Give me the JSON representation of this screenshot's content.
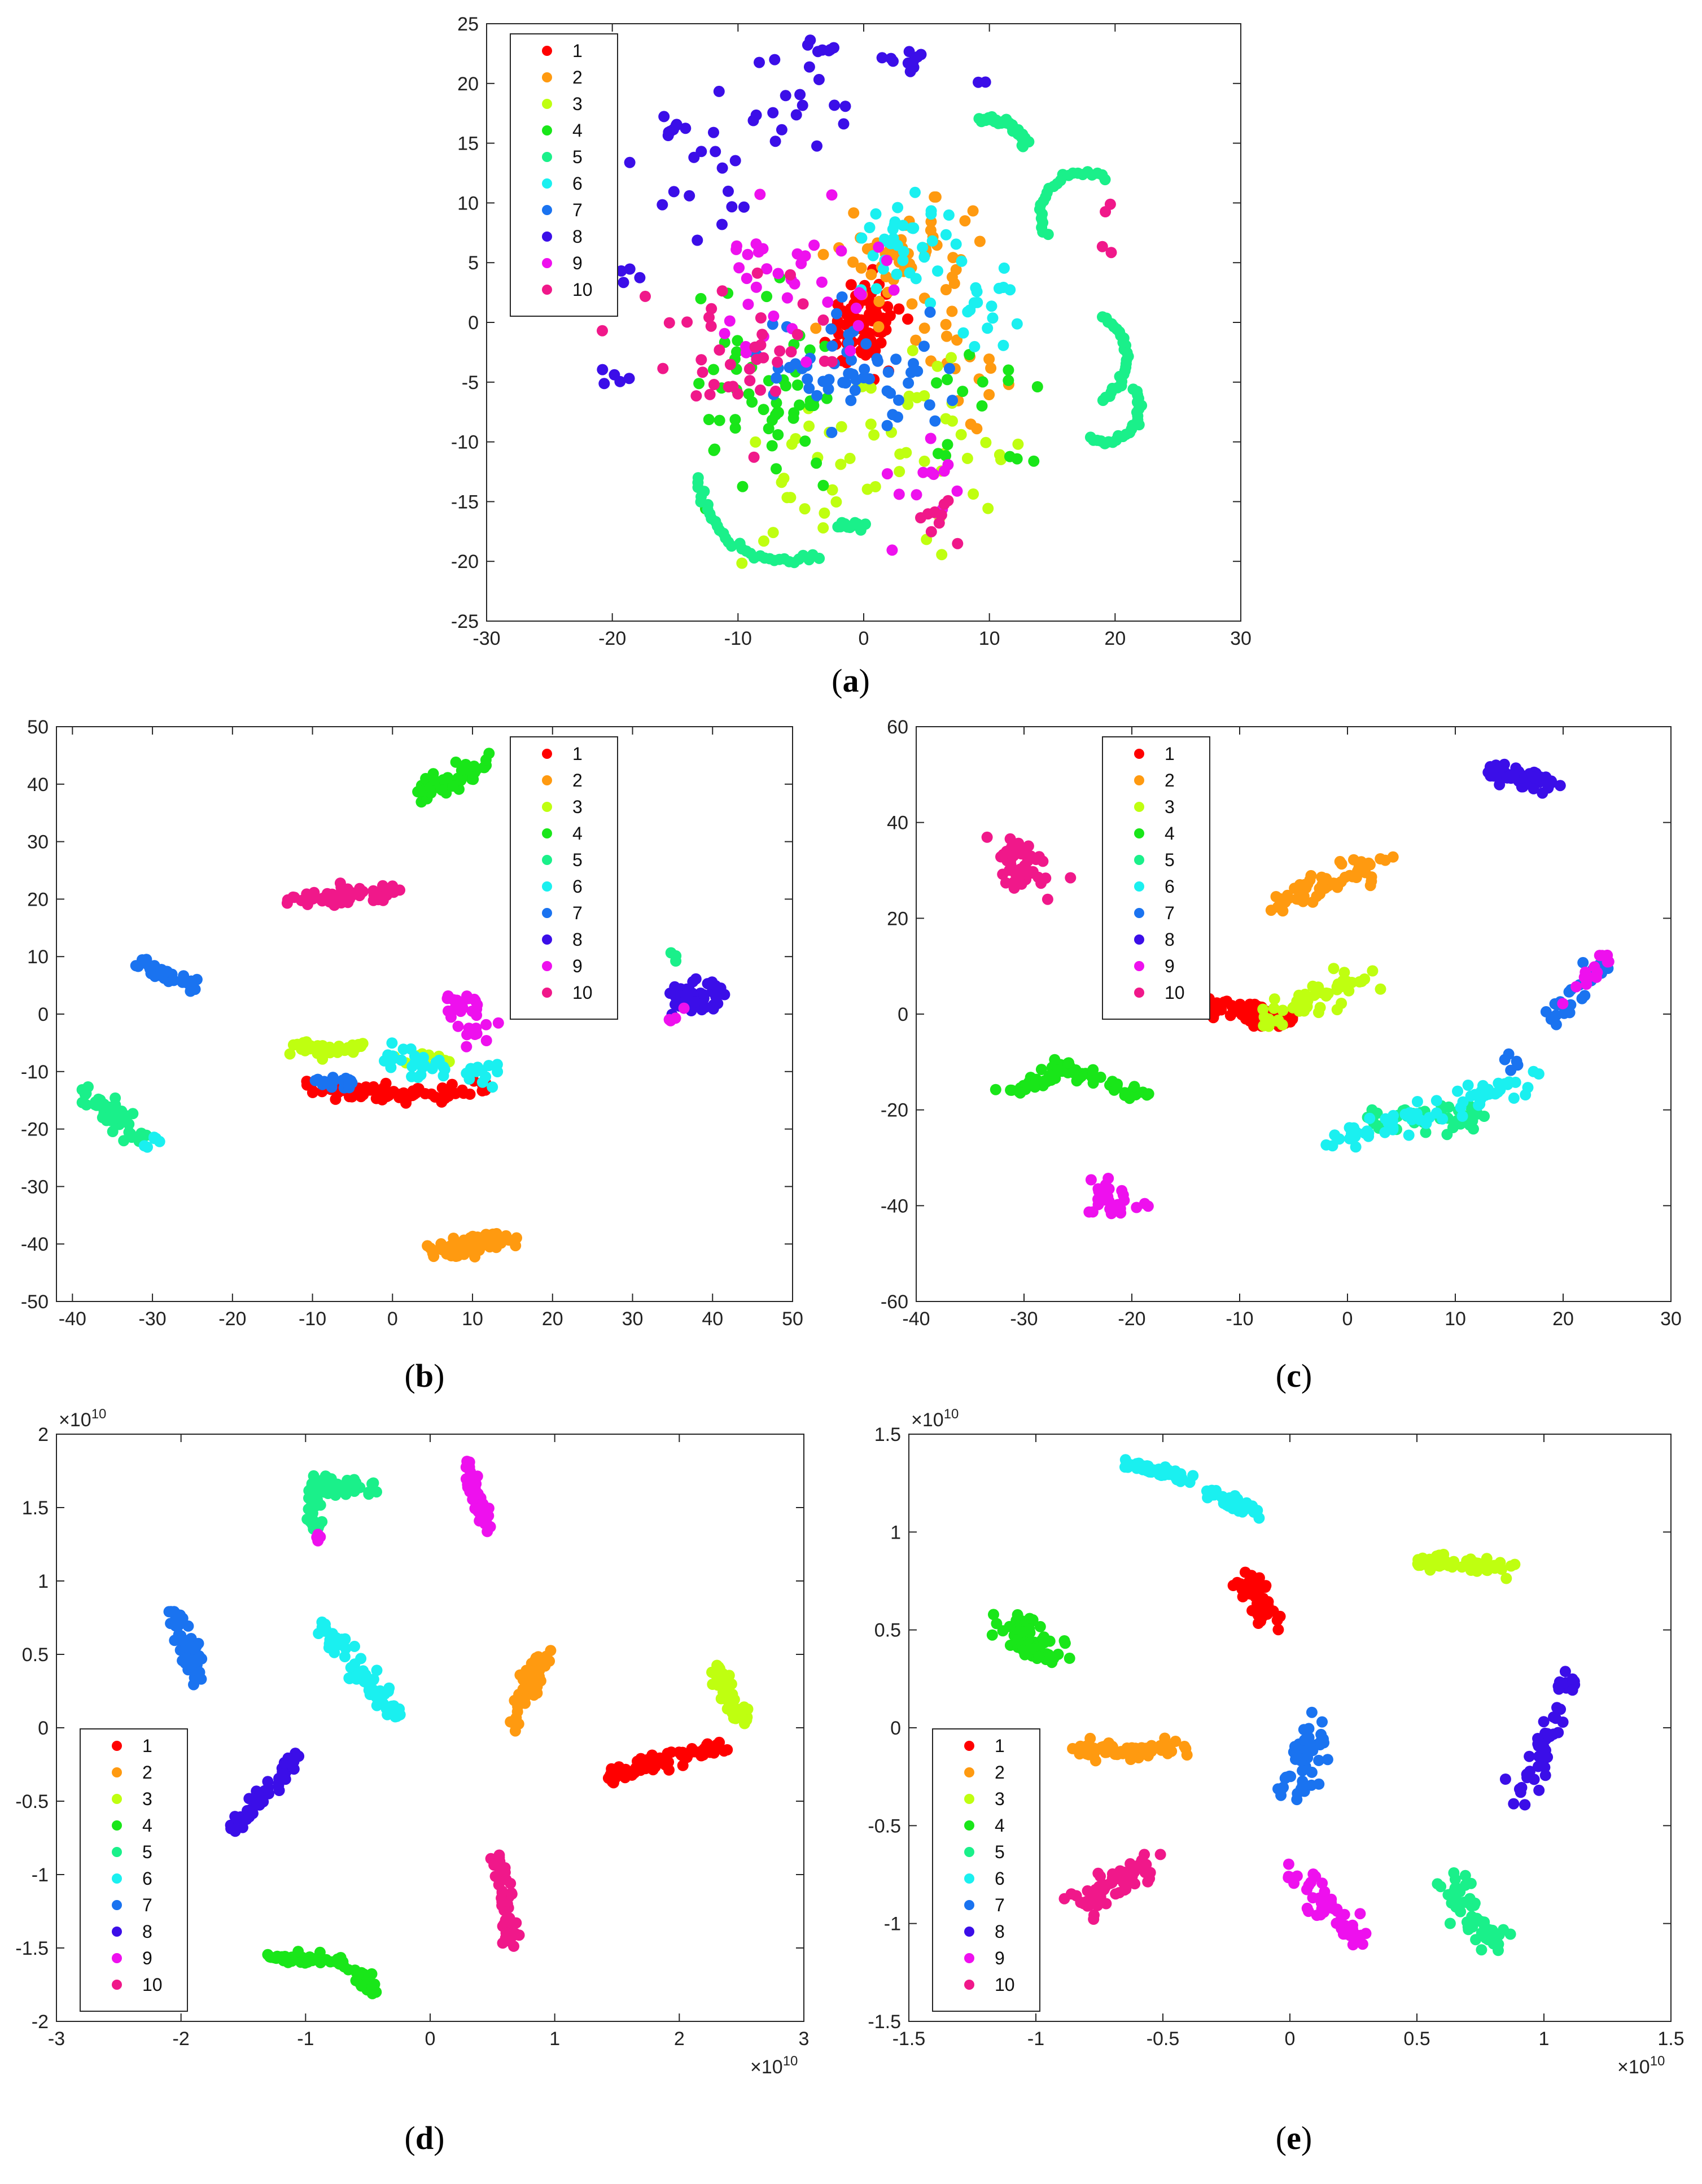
{
  "chart_data": [
    {
      "id": "a",
      "panel_label": "a",
      "type": "scatter",
      "title": "",
      "xlabel": "",
      "ylabel": "",
      "xlim": [
        -30,
        30
      ],
      "ylim": [
        -25,
        25
      ],
      "xticks": [
        -30,
        -20,
        -10,
        0,
        10,
        20,
        30
      ],
      "yticks": [
        -25,
        -20,
        -15,
        -10,
        -5,
        0,
        5,
        10,
        15,
        20,
        25
      ],
      "exponent": "",
      "legend_position": "top-left",
      "series": [
        {
          "name": "1",
          "clusters": [
            [
              0,
              0,
              2.5,
              3.0,
              80
            ]
          ]
        },
        {
          "name": "2",
          "clusters": [
            [
              4,
              5,
              5,
              4.5,
              55
            ],
            [
              8,
              -4,
              3,
              3,
              15
            ]
          ]
        },
        {
          "name": "3",
          "clusters": [
            [
              2,
              -10,
              8,
              5,
              45
            ],
            [
              -5,
              -15,
              4,
              3,
              12
            ]
          ]
        },
        {
          "name": "4",
          "clusters": [
            [
              -8,
              -7,
              6,
              7,
              55
            ],
            [
              10,
              -8,
              4,
              4,
              15
            ]
          ]
        },
        {
          "name": "5",
          "arcs": [
            [
              10,
              14,
              3,
              15,
              105,
              40
            ],
            [
              17.5,
              9,
              3.5,
              60,
              210,
              25
            ],
            [
              17,
              -3,
              4,
              300,
              420,
              28
            ],
            [
              19,
              -7,
              3,
              250,
              390,
              25
            ],
            [
              -6,
              -13,
              7,
              180,
              290,
              35
            ],
            [
              -1,
              -20,
              3,
              70,
              110,
              12
            ]
          ]
        },
        {
          "name": "6",
          "clusters": [
            [
              3,
              7,
              4,
              3,
              35
            ],
            [
              10,
              2,
              3,
              3,
              20
            ]
          ]
        },
        {
          "name": "7",
          "clusters": [
            [
              -1,
              -4,
              6,
              4,
              60
            ]
          ]
        },
        {
          "name": "8",
          "clusters": [
            [
              -12,
              12,
              5,
              4,
              18
            ],
            [
              -5,
              18,
              5,
              4,
              18
            ],
            [
              3,
              22,
              2,
              1,
              10
            ],
            [
              -3,
              23,
              1,
              0.5,
              6
            ],
            [
              -15,
              16,
              1,
              0.5,
              6
            ],
            [
              -20,
              -5,
              1.5,
              1,
              5
            ],
            [
              -19,
              4,
              1,
              1,
              4
            ],
            [
              10,
              20,
              0.5,
              0.5,
              2
            ]
          ]
        },
        {
          "name": "9",
          "clusters": [
            [
              -6,
              3,
              7,
              6,
              40
            ],
            [
              4,
              -13,
              5,
              4,
              12
            ]
          ]
        },
        {
          "name": "10",
          "clusters": [
            [
              -10,
              -2,
              6,
              6,
              40
            ],
            [
              6,
              -17,
              2,
              2,
              10
            ],
            [
              19,
              7,
              1,
              3,
              4
            ]
          ]
        }
      ]
    },
    {
      "id": "b",
      "panel_label": "b",
      "type": "scatter",
      "title": "",
      "xlabel": "",
      "ylabel": "",
      "xlim": [
        -42,
        50
      ],
      "ylim": [
        -50,
        50
      ],
      "xticks": [
        -40,
        -30,
        -20,
        -10,
        0,
        10,
        20,
        30,
        40,
        50
      ],
      "yticks": [
        -50,
        -40,
        -30,
        -20,
        -10,
        0,
        10,
        20,
        30,
        40,
        50
      ],
      "exponent": "",
      "legend_position": "top-right",
      "series": [
        {
          "name": "1",
          "segments": [
            [
              -10,
              -13,
              5,
              -14,
              60,
              1.2
            ],
            [
              5,
              -14,
              12,
              -13,
              20,
              1.0
            ]
          ]
        },
        {
          "name": "2",
          "segments": [
            [
              5,
              -42,
              14,
              -39,
              70,
              1.8
            ]
          ]
        },
        {
          "name": "3",
          "segments": [
            [
              -13,
              -6,
              -3,
              -6,
              35,
              1.2
            ],
            [
              0,
              -8,
              7,
              -8,
              15,
              1.0
            ]
          ]
        },
        {
          "name": "4",
          "segments": [
            [
              4,
              39,
              11,
              43,
              55,
              1.8
            ]
          ]
        },
        {
          "name": "5",
          "segments": [
            [
              -38,
              -14,
              -31,
              -22,
              55,
              1.5
            ],
            [
              35,
              11,
              35,
              8,
              3,
              0.4
            ]
          ]
        },
        {
          "name": "6",
          "segments": [
            [
              0,
              -8,
              14,
              -11,
              40,
              2.0
            ],
            [
              -29,
              -21,
              -31,
              -23,
              6,
              0.8
            ]
          ]
        },
        {
          "name": "7",
          "segments": [
            [
              -32,
              9,
              -25,
              5,
              35,
              1.0
            ],
            [
              -10,
              -12,
              -5,
              -12,
              15,
              1.0
            ]
          ]
        },
        {
          "name": "8",
          "segments": [
            [
              36,
              2,
              41,
              4,
              45,
              2.0
            ]
          ]
        },
        {
          "name": "9",
          "segments": [
            [
              8,
              3,
              11,
              -5,
              30,
              1.8
            ],
            [
              34,
              -2,
              36,
              1,
              4,
              0.5
            ]
          ]
        },
        {
          "name": "10",
          "segments": [
            [
              -13,
              20,
              0,
              21,
              60,
              1.2
            ]
          ]
        }
      ]
    },
    {
      "id": "c",
      "panel_label": "c",
      "type": "scatter",
      "title": "",
      "xlabel": "",
      "ylabel": "",
      "xlim": [
        -40,
        30
      ],
      "ylim": [
        -60,
        60
      ],
      "xticks": [
        -40,
        -30,
        -20,
        -10,
        0,
        10,
        20,
        30
      ],
      "yticks": [
        -60,
        -40,
        -20,
        0,
        20,
        40,
        60
      ],
      "exponent": "",
      "legend_position": "top-left",
      "series": [
        {
          "name": "1",
          "segments": [
            [
              -13,
              2,
              -6,
              -2,
              45,
              2.5
            ]
          ]
        },
        {
          "name": "2",
          "segments": [
            [
              -6,
              23,
              3,
              32,
              65,
              1.8
            ]
          ]
        },
        {
          "name": "3",
          "segments": [
            [
              -8,
              -2,
              2,
              8,
              55,
              2.2
            ]
          ]
        },
        {
          "name": "4",
          "segments": [
            [
              -31,
              -16,
              -26,
              -11,
              35,
              1.8
            ],
            [
              -26,
              -11,
              -19,
              -17,
              30,
              1.5
            ]
          ]
        },
        {
          "name": "5",
          "segments": [
            [
              3,
              -22,
              12,
              -22,
              45,
              2.5
            ]
          ]
        },
        {
          "name": "6",
          "segments": [
            [
              -2,
              -27,
              17,
              -14,
              70,
              1.8
            ]
          ]
        },
        {
          "name": "7",
          "segments": [
            [
              19,
              -1,
              23,
              10,
              30,
              1.2
            ],
            [
              14,
              -8,
              16,
              -12,
              5,
              0.8
            ]
          ]
        },
        {
          "name": "8",
          "segments": [
            [
              13,
              51,
              18,
              48,
              55,
              2.0
            ]
          ]
        },
        {
          "name": "9",
          "segments": [
            [
              -23,
              -37,
              -21,
              -41,
              30,
              2.0
            ],
            [
              21,
              3,
              24,
              12,
              15,
              1.2
            ]
          ]
        },
        {
          "name": "10",
          "segments": [
            [
              -31,
              36,
              -29,
              27,
              50,
              2.0
            ]
          ]
        }
      ]
    },
    {
      "id": "d",
      "panel_label": "d",
      "type": "scatter",
      "title": "",
      "xlabel": "",
      "ylabel": "",
      "xlim": [
        -3,
        3
      ],
      "ylim": [
        -2,
        2
      ],
      "xticks": [
        -3,
        -2,
        -1,
        0,
        1,
        2,
        3
      ],
      "yticks": [
        -2,
        -1.5,
        -1,
        -0.5,
        0,
        0.5,
        1,
        1.5,
        2
      ],
      "exponent": "10",
      "legend_position": "bottom-left",
      "series": [
        {
          "name": "1",
          "segments": [
            [
              1.45,
              -0.32,
              2.4,
              -0.12,
              70,
              0.05
            ]
          ]
        },
        {
          "name": "2",
          "segments": [
            [
              0.65,
              0.0,
              0.9,
              0.5,
              55,
              0.06
            ]
          ]
        },
        {
          "name": "3",
          "segments": [
            [
              2.5,
              0.05,
              2.3,
              0.4,
              55,
              0.06
            ]
          ]
        },
        {
          "name": "4",
          "segments": [
            [
              -1.3,
              -1.56,
              -0.7,
              -1.6,
              45,
              0.03
            ],
            [
              -0.6,
              -1.65,
              -0.45,
              -1.8,
              20,
              0.05
            ]
          ]
        },
        {
          "name": "5",
          "segments": [
            [
              -0.95,
              1.35,
              -0.9,
              1.7,
              35,
              0.06
            ],
            [
              -0.95,
              1.62,
              -0.45,
              1.65,
              35,
              0.05
            ]
          ]
        },
        {
          "name": "6",
          "segments": [
            [
              -0.85,
              0.7,
              -0.25,
              0.05,
              75,
              0.06
            ]
          ]
        },
        {
          "name": "7",
          "segments": [
            [
              -2.05,
              0.75,
              -1.85,
              0.35,
              55,
              0.07
            ]
          ]
        },
        {
          "name": "8",
          "segments": [
            [
              -1.6,
              -0.7,
              -1.05,
              -0.2,
              60,
              0.04
            ]
          ]
        },
        {
          "name": "9",
          "segments": [
            [
              0.3,
              1.8,
              0.45,
              1.35,
              50,
              0.06
            ],
            [
              -0.88,
              1.28,
              -0.92,
              1.3,
              4,
              0.02
            ]
          ]
        },
        {
          "name": "10",
          "segments": [
            [
              0.55,
              -0.9,
              0.65,
              -1.45,
              55,
              0.05
            ]
          ]
        }
      ]
    },
    {
      "id": "e",
      "panel_label": "e",
      "type": "scatter",
      "title": "",
      "xlabel": "",
      "ylabel": "",
      "xlim": [
        -1.5,
        1.5
      ],
      "ylim": [
        -1.5,
        1.5
      ],
      "xticks": [
        -1.5,
        -1,
        -0.5,
        0,
        0.5,
        1,
        1.5
      ],
      "yticks": [
        -1.5,
        -1,
        -0.5,
        0,
        0.5,
        1,
        1.5
      ],
      "exponent": "10",
      "legend_position": "bottom-left",
      "series": [
        {
          "name": "1",
          "segments": [
            [
              -0.18,
              0.78,
              -0.08,
              0.52,
              50,
              0.05
            ]
          ]
        },
        {
          "name": "2",
          "segments": [
            [
              -0.85,
              -0.12,
              -0.4,
              -0.1,
              70,
              0.04
            ]
          ]
        },
        {
          "name": "3",
          "segments": [
            [
              0.5,
              0.85,
              0.88,
              0.82,
              60,
              0.03
            ]
          ]
        },
        {
          "name": "4",
          "segments": [
            [
              -1.08,
              0.55,
              -0.95,
              0.35,
              60,
              0.08
            ]
          ]
        },
        {
          "name": "5",
          "segments": [
            [
              0.6,
              -0.75,
              0.8,
              -1.1,
              60,
              0.05
            ]
          ]
        },
        {
          "name": "6",
          "segments": [
            [
              -0.65,
              1.35,
              -0.4,
              1.28,
              40,
              0.03
            ],
            [
              -0.3,
              1.2,
              -0.15,
              1.1,
              30,
              0.04
            ]
          ]
        },
        {
          "name": "7",
          "segments": [
            [
              0.1,
              0.0,
              0.0,
              -0.35,
              50,
              0.06
            ]
          ]
        },
        {
          "name": "8",
          "segments": [
            [
              0.9,
              -0.4,
              1.1,
              0.25,
              55,
              0.05
            ]
          ]
        },
        {
          "name": "9",
          "segments": [
            [
              0.0,
              -0.72,
              0.28,
              -1.1,
              50,
              0.05
            ]
          ]
        },
        {
          "name": "10",
          "segments": [
            [
              -0.85,
              -0.92,
              -0.55,
              -0.7,
              60,
              0.06
            ]
          ]
        }
      ]
    }
  ],
  "colors": {
    "1": "#ff0000",
    "2": "#ff9a10",
    "3": "#bfff10",
    "4": "#19e619",
    "5": "#1af08a",
    "6": "#1af0f0",
    "7": "#1a73f0",
    "8": "#3b0ee8",
    "9": "#ee10ee",
    "10": "#f0188a"
  }
}
